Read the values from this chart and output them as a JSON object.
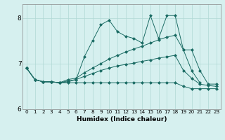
{
  "title": "",
  "xlabel": "Humidex (Indice chaleur)",
  "background_color": "#d6f0ef",
  "grid_color": "#b0d8d5",
  "line_color": "#1a6b63",
  "x": [
    0,
    1,
    2,
    3,
    4,
    5,
    6,
    7,
    8,
    9,
    10,
    11,
    12,
    13,
    14,
    15,
    16,
    17,
    18,
    19,
    20,
    21,
    22,
    23
  ],
  "lines": [
    [
      6.9,
      6.65,
      6.6,
      6.6,
      6.58,
      6.6,
      6.65,
      7.15,
      7.5,
      7.85,
      7.95,
      7.7,
      7.6,
      7.55,
      7.45,
      8.05,
      7.55,
      8.05,
      8.05,
      7.3,
      7.3,
      6.85,
      6.55,
      6.55
    ],
    [
      6.9,
      6.65,
      6.6,
      6.6,
      6.58,
      6.65,
      6.68,
      6.8,
      6.9,
      7.0,
      7.1,
      7.18,
      7.25,
      7.32,
      7.38,
      7.45,
      7.52,
      7.58,
      7.62,
      7.3,
      6.85,
      6.58,
      null,
      null
    ],
    [
      6.9,
      6.65,
      6.6,
      6.6,
      6.58,
      6.62,
      6.65,
      6.72,
      6.78,
      6.85,
      6.9,
      6.95,
      6.98,
      7.01,
      7.05,
      7.08,
      7.12,
      7.15,
      7.18,
      6.85,
      6.68,
      6.55,
      6.52,
      6.5
    ],
    [
      6.9,
      6.65,
      6.6,
      6.6,
      6.58,
      6.58,
      6.58,
      6.58,
      6.58,
      6.58,
      6.58,
      6.58,
      6.58,
      6.58,
      6.58,
      6.58,
      6.58,
      6.58,
      6.58,
      6.5,
      6.45,
      6.45,
      6.45,
      6.45
    ]
  ],
  "ylim": [
    6.0,
    8.3
  ],
  "xlim": [
    -0.5,
    23.5
  ],
  "yticks": [
    6,
    7,
    8
  ],
  "xticks": [
    0,
    1,
    2,
    3,
    4,
    5,
    6,
    7,
    8,
    9,
    10,
    11,
    12,
    13,
    14,
    15,
    16,
    17,
    18,
    19,
    20,
    21,
    22,
    23
  ],
  "figsize": [
    3.2,
    2.0
  ],
  "dpi": 100
}
